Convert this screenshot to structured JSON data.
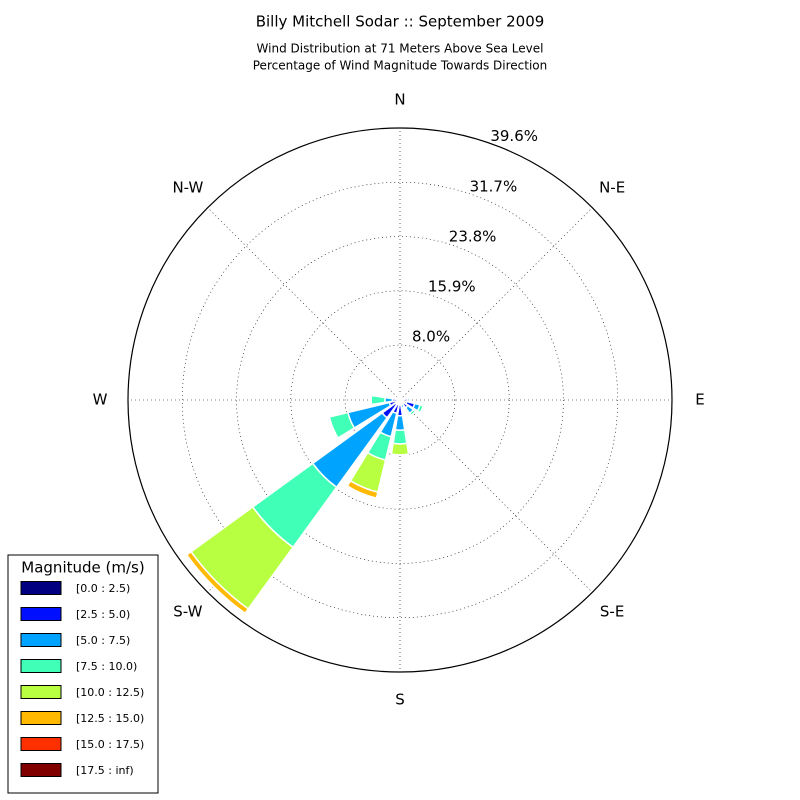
{
  "chart_data": {
    "type": "windrose",
    "title": "Billy Mitchell Sodar :: September 2009",
    "subtitle": [
      "Wind Distribution at 71 Meters Above Sea Level",
      "Percentage of Wind Magnitude Towards Direction"
    ],
    "x": [
      0,
      22.5,
      45,
      67.5,
      90,
      112.5,
      135,
      157.5,
      180,
      202.5,
      225,
      247.5,
      270,
      292.5,
      315,
      337.5
    ],
    "xticks": [
      {
        "value": 0,
        "label": "N"
      },
      {
        "value": 45,
        "label": "N-E"
      },
      {
        "value": 90,
        "label": "E"
      },
      {
        "value": 135,
        "label": "S-E"
      },
      {
        "value": 180,
        "label": "S"
      },
      {
        "value": 225,
        "label": "S-W"
      },
      {
        "value": 270,
        "label": "W"
      },
      {
        "value": 315,
        "label": "N-W"
      }
    ],
    "ylim": [
      0,
      39.6
    ],
    "yticks": [
      {
        "value": 8.0,
        "label": "8.0%"
      },
      {
        "value": 15.9,
        "label": "15.9%"
      },
      {
        "value": 23.8,
        "label": "23.8%"
      },
      {
        "value": 31.7,
        "label": "31.7%"
      },
      {
        "value": 39.6,
        "label": "39.6%"
      }
    ],
    "grid": true,
    "legend_title": "Magnitude (m/s)",
    "legend": "lower left",
    "series": [
      {
        "name": "[0.0 : 2.5)",
        "color": "#000080",
        "values": [
          0.3,
          0.2,
          0.1,
          0.2,
          0.5,
          1.0,
          0.6,
          0.3,
          0.6,
          0.5,
          0.8,
          0.4,
          0.3,
          0.2,
          0.1,
          0.2
        ]
      },
      {
        "name": "[2.5 : 5.0)",
        "color": "#0010ff",
        "values": [
          0.2,
          0.1,
          0,
          0.1,
          0.6,
          1.2,
          0.8,
          0.4,
          1.7,
          1.5,
          2.4,
          1.2,
          0.8,
          0.3,
          0.1,
          0.2
        ]
      },
      {
        "name": "[5.0 : 7.5)",
        "color": "#00a4ff",
        "values": [
          0.1,
          0,
          0,
          0,
          0.3,
          0.8,
          1.0,
          0.5,
          2.1,
          3.5,
          12.5,
          6.2,
          1.1,
          0.3,
          0,
          0.1
        ]
      },
      {
        "name": "[7.5 : 10.0)",
        "color": "#40ffb7",
        "values": [
          0,
          0,
          0,
          0,
          0.2,
          0.5,
          0.4,
          0.1,
          2.0,
          3.5,
          10.8,
          2.8,
          2.0,
          0.2,
          0,
          0.1
        ]
      },
      {
        "name": "[10.0 : 12.5)",
        "color": "#b7ff40",
        "values": [
          0,
          0,
          0,
          0,
          0,
          0,
          0,
          0,
          1.6,
          4.8,
          11.1,
          0,
          0.2,
          0,
          0,
          0
        ]
      },
      {
        "name": "[12.5 : 15.0)",
        "color": "#ffb900",
        "values": [
          0,
          0,
          0,
          0,
          0,
          0,
          0,
          0,
          0,
          0.9,
          0.8,
          0,
          0,
          0,
          0,
          0
        ]
      },
      {
        "name": "[15.0 : 17.5)",
        "color": "#ff3000",
        "values": [
          0,
          0,
          0,
          0,
          0,
          0,
          0,
          0,
          0,
          0,
          0,
          0,
          0,
          0,
          0,
          0
        ]
      },
      {
        "name": "[17.5 : inf)",
        "color": "#800000",
        "values": [
          0,
          0,
          0,
          0,
          0,
          0,
          0,
          0,
          0,
          0,
          0,
          0,
          0,
          0,
          0,
          0
        ]
      }
    ]
  }
}
